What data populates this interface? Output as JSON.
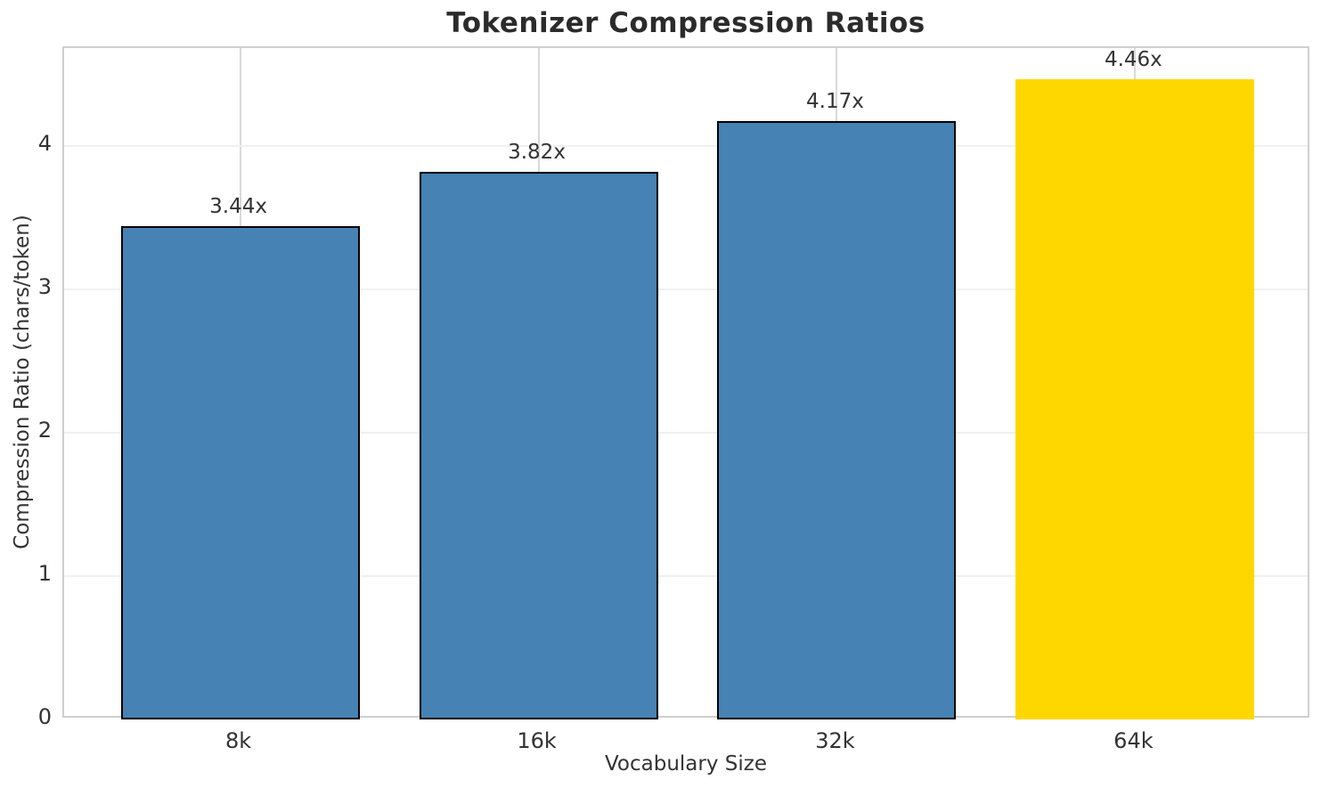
{
  "chart_data": {
    "type": "bar",
    "title": "Tokenizer Compression Ratios",
    "xlabel": "Vocabulary Size",
    "ylabel": "Compression Ratio (chars/token)",
    "categories": [
      "8k",
      "16k",
      "32k",
      "64k"
    ],
    "values": [
      3.44,
      3.82,
      4.17,
      4.46
    ],
    "bar_labels": [
      "3.44x",
      "3.82x",
      "4.17x",
      "4.46x"
    ],
    "bar_colors": [
      "#4682B4",
      "#4682B4",
      "#4682B4",
      "#FFD700"
    ],
    "bar_edge_colors": [
      "#000000",
      "#000000",
      "#000000",
      "none"
    ],
    "highlight_index": 3,
    "yticks": [
      0,
      1,
      2,
      3,
      4
    ],
    "ylim": [
      0,
      4.68
    ],
    "grid": true,
    "legend": "none",
    "colors": {
      "title_text": "#2b2b2b",
      "tick_text": "#333333",
      "spine": "#cfcfcf",
      "grid_horizontal": "#f0f0f0",
      "grid_vertical": "#d9d9d9",
      "background": "#ffffff"
    }
  }
}
